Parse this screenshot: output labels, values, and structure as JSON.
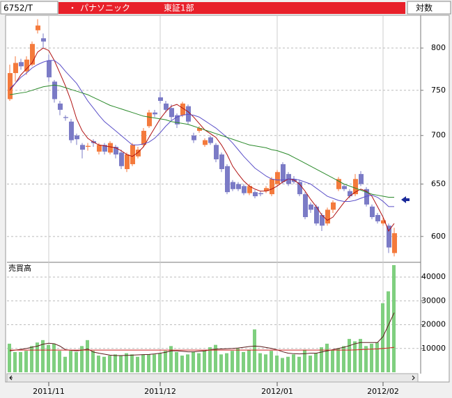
{
  "header": {
    "code": "6752/T",
    "bullet": "・",
    "name": "パナソニック",
    "market": "東証1部",
    "scale_mode": "対数"
  },
  "chart_data": [
    {
      "type": "candlestick",
      "log_scale": true,
      "grid": true,
      "up_color": "#f47a3c",
      "down_color": "#7b7bc6",
      "open": [
        740,
        770,
        783,
        772,
        780,
        822,
        812,
        785,
        760,
        735,
        720,
        715,
        700,
        690,
        688,
        694,
        683,
        690,
        682,
        688,
        682,
        665,
        670,
        678,
        690,
        710,
        725,
        742,
        735,
        730,
        722,
        722,
        732,
        700,
        705,
        690,
        698,
        690,
        680,
        668,
        652,
        650,
        648,
        641,
        642,
        641,
        643,
        640,
        650,
        670,
        660,
        655,
        652,
        640,
        630,
        628,
        620,
        612,
        625,
        645,
        648,
        643,
        640,
        660,
        645,
        628,
        620,
        612,
        610,
        585
      ],
      "high": [
        780,
        790,
        787,
        790,
        808,
        836,
        818,
        792,
        762,
        738,
        722,
        718,
        702,
        692,
        692,
        696,
        692,
        692,
        694,
        690,
        685,
        682,
        692,
        688,
        708,
        728,
        728,
        748,
        738,
        734,
        724,
        737,
        734,
        703,
        710,
        697,
        700,
        692,
        682,
        670,
        654,
        652,
        650,
        650,
        644,
        643,
        648,
        657,
        664,
        672,
        662,
        658,
        654,
        642,
        632,
        630,
        622,
        627,
        634,
        657,
        650,
        645,
        660,
        663,
        647,
        630,
        622,
        618,
        612,
        608
      ],
      "low": [
        738,
        760,
        774,
        768,
        778,
        818,
        800,
        760,
        736,
        722,
        716,
        692,
        690,
        676,
        684,
        688,
        680,
        680,
        680,
        676,
        665,
        662,
        668,
        676,
        688,
        708,
        720,
        735,
        725,
        716,
        708,
        720,
        712,
        692,
        703,
        688,
        690,
        672,
        662,
        640,
        643,
        643,
        639,
        639,
        636,
        638,
        641,
        638,
        648,
        650,
        648,
        650,
        638,
        616,
        622,
        610,
        605,
        610,
        622,
        643,
        643,
        636,
        638,
        648,
        628,
        616,
        612,
        610,
        585,
        582
      ],
      "close": [
        770,
        782,
        778,
        786,
        805,
        828,
        808,
        765,
        740,
        728,
        719,
        695,
        696,
        685,
        689,
        692,
        690,
        683,
        692,
        680,
        668,
        680,
        690,
        685,
        705,
        725,
        723,
        738,
        728,
        720,
        712,
        735,
        715,
        695,
        708,
        695,
        692,
        675,
        665,
        642,
        645,
        645,
        641,
        648,
        638,
        640,
        646,
        655,
        662,
        652,
        650,
        652,
        640,
        618,
        625,
        612,
        610,
        625,
        632,
        655,
        645,
        638,
        655,
        650,
        630,
        618,
        614,
        615,
        590,
        603
      ],
      "series": [
        {
          "color": "#b01010",
          "values": [
            750,
            758,
            768,
            775,
            782,
            795,
            800,
            797,
            785,
            770,
            755,
            738,
            718,
            705,
            697,
            693,
            690,
            689,
            688,
            687,
            684,
            680,
            678,
            682,
            688,
            698,
            708,
            718,
            726,
            732,
            734,
            730,
            726,
            720,
            713,
            706,
            702,
            698,
            690,
            680,
            668,
            660,
            653,
            648,
            645,
            643,
            643,
            645,
            648,
            652,
            655,
            654,
            650,
            643,
            635,
            628,
            620,
            615,
            618,
            625,
            632,
            638,
            642,
            645,
            643,
            638,
            628,
            618,
            605,
            612
          ]
        },
        {
          "color": "#5a4fc8",
          "values": [
            752,
            758,
            765,
            770,
            776,
            780,
            783,
            785,
            785,
            780,
            772,
            765,
            758,
            748,
            738,
            730,
            722,
            715,
            710,
            705,
            700,
            695,
            690,
            690,
            691,
            693,
            697,
            703,
            710,
            716,
            720,
            722,
            723,
            722,
            720,
            716,
            712,
            708,
            703,
            698,
            692,
            685,
            678,
            672,
            666,
            662,
            658,
            655,
            654,
            654,
            655,
            655,
            654,
            652,
            650,
            646,
            642,
            638,
            636,
            634,
            633,
            633,
            634,
            636,
            638,
            639,
            637,
            633,
            628,
            628
          ]
        },
        {
          "color": "#2a8a2a",
          "values": [
            745,
            746,
            747,
            748,
            750,
            752,
            754,
            755,
            756,
            755,
            753,
            751,
            749,
            747,
            745,
            742,
            739,
            736,
            733,
            731,
            729,
            727,
            725,
            723,
            721,
            720,
            719,
            718,
            717,
            715,
            714,
            713,
            712,
            710,
            708,
            706,
            704,
            702,
            700,
            698,
            696,
            694,
            692,
            690,
            689,
            688,
            687,
            685,
            684,
            682,
            680,
            677,
            674,
            671,
            668,
            665,
            662,
            659,
            656,
            653,
            650,
            648,
            646,
            644,
            642,
            640,
            639,
            638,
            637,
            637
          ]
        }
      ],
      "ylim": [
        578,
        841
      ],
      "yticks": [
        600,
        650,
        700,
        750,
        800
      ]
    },
    {
      "type": "bar",
      "title": "売買高",
      "color": "#7fcf7f",
      "grid": true,
      "categories": [
        null,
        null,
        null,
        null,
        null,
        null,
        null,
        "2011/11",
        null,
        null,
        null,
        null,
        null,
        null,
        null,
        null,
        null,
        null,
        null,
        null,
        null,
        null,
        null,
        null,
        null,
        null,
        null,
        "2011/12",
        null,
        null,
        null,
        null,
        null,
        null,
        null,
        null,
        null,
        null,
        null,
        null,
        null,
        null,
        null,
        null,
        null,
        null,
        null,
        null,
        "2012/01",
        null,
        null,
        null,
        null,
        null,
        null,
        null,
        null,
        null,
        null,
        null,
        null,
        null,
        null,
        null,
        null,
        null,
        null,
        "2012/02",
        null,
        null
      ],
      "values": [
        12000,
        8500,
        8500,
        9000,
        11000,
        12500,
        13500,
        11500,
        12000,
        9000,
        6500,
        9000,
        8500,
        11000,
        13500,
        9000,
        7000,
        6500,
        7000,
        7500,
        7000,
        8000,
        7500,
        6500,
        7500,
        7500,
        7500,
        8000,
        9000,
        11000,
        8500,
        7000,
        7500,
        8500,
        8000,
        9000,
        10500,
        11500,
        7500,
        8000,
        9000,
        10000,
        8500,
        9500,
        18000,
        8000,
        7500,
        9000,
        7000,
        6000,
        6500,
        7500,
        6500,
        9500,
        7000,
        8000,
        10500,
        12000,
        9500,
        10000,
        11000,
        14000,
        13000,
        14000,
        11000,
        12000,
        12500,
        29000,
        34000,
        45000
      ],
      "series": [
        {
          "color": "#5a1a1a",
          "values": [
            9000,
            9300,
            9600,
            10000,
            10500,
            11000,
            11800,
            12200,
            12000,
            11000,
            9500,
            9200,
            9000,
            9300,
            9800,
            8500,
            8000,
            7600,
            7200,
            7000,
            7000,
            7100,
            7200,
            7300,
            7400,
            7500,
            7700,
            8000,
            8400,
            9000,
            9000,
            8800,
            8600,
            8600,
            8800,
            9000,
            9400,
            9700,
            9800,
            9900,
            10000,
            10200,
            10500,
            10800,
            11000,
            10800,
            10400,
            10000,
            9400,
            8600,
            8000,
            7800,
            7700,
            7800,
            8000,
            8000,
            8500,
            9000,
            9500,
            10000,
            10500,
            11200,
            12000,
            12500,
            12500,
            12500,
            12500,
            15000,
            20000,
            25000
          ]
        },
        {
          "color": "#d02020",
          "values": [
            9300,
            9300,
            9300,
            9300,
            9300,
            9300,
            9300,
            9300,
            9300,
            9300,
            9300,
            9300,
            9300,
            9300,
            9300,
            9300,
            9300,
            9300,
            9300,
            9300,
            9300,
            9300,
            9300,
            9300,
            9300,
            9300,
            9300,
            9300,
            9300,
            9300,
            9300,
            9300,
            9300,
            9300,
            9300,
            9300,
            9300,
            9300,
            9300,
            9300,
            9300,
            9300,
            9300,
            9300,
            9300,
            9300,
            9300,
            9300,
            9300,
            9300,
            9300,
            9300,
            9300,
            9300,
            9300,
            9300,
            9300,
            9300,
            9300,
            9300,
            9300,
            9300,
            9400,
            9500,
            9600,
            9700,
            9800,
            10000,
            10200,
            10500
          ]
        }
      ],
      "ylim": [
        0,
        45300
      ],
      "yticks": [
        10000,
        20000,
        30000,
        40000
      ]
    }
  ]
}
